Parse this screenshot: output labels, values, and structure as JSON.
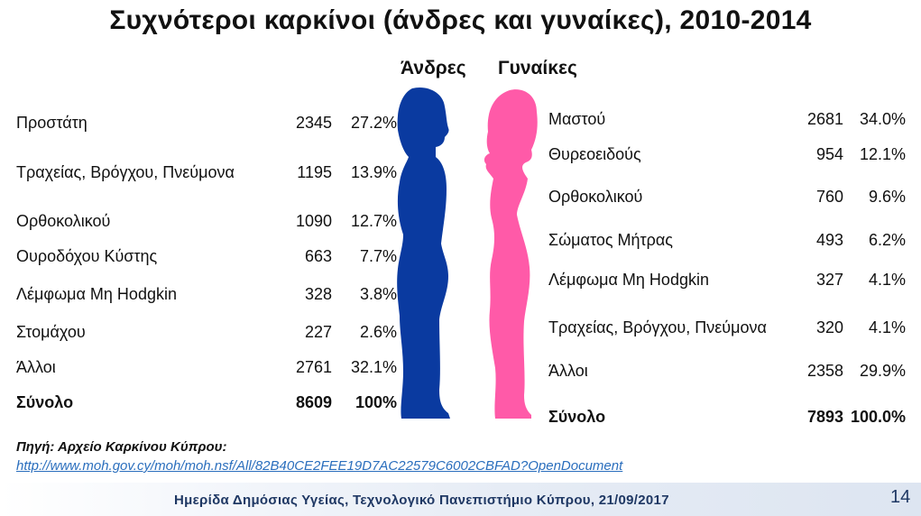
{
  "title": "Συχνότεροι καρκίνοι (άνδρες και γυναίκες), 2010-2014",
  "headers": {
    "men": "Άνδρες",
    "women": "Γυναίκες"
  },
  "colors": {
    "men": "#0a3aa0",
    "women": "#ff5aa8"
  },
  "men": [
    {
      "label": "Προστάτη",
      "count": "2345",
      "percent": "27.2%"
    },
    {
      "label": "Τραχείας, Βρόγχου, Πνεύμονα",
      "count": "1195",
      "percent": "13.9%"
    },
    {
      "label": "Ορθοκολικού",
      "count": "1090",
      "percent": "12.7%"
    },
    {
      "label": "Ουροδόχου Κύστης",
      "count": "663",
      "percent": "7.7%"
    },
    {
      "label": "Λέμφωμα Μη  Hodgkin",
      "count": "328",
      "percent": "3.8%"
    },
    {
      "label": "Στομάχου",
      "count": "227",
      "percent": "2.6%"
    },
    {
      "label": "Άλλοι",
      "count": "2761",
      "percent": "32.1%"
    },
    {
      "label": "Σύνολο",
      "count": "8609",
      "percent": "100%"
    }
  ],
  "women": [
    {
      "label": "Μαστού",
      "count": "2681",
      "percent": "34.0%"
    },
    {
      "label": "Θυρεοειδούς",
      "count": "954",
      "percent": "12.1%"
    },
    {
      "label": "Ορθοκολικού",
      "count": "760",
      "percent": "9.6%"
    },
    {
      "label": "Σώματος Μήτρας",
      "count": "493",
      "percent": "6.2%"
    },
    {
      "label": "Λέμφωμα Μη Hodgkin",
      "count": "327",
      "percent": "4.1%"
    },
    {
      "label": "Τραχείας, Βρόγχου, Πνεύμονα",
      "count": "320",
      "percent": "4.1%"
    },
    {
      "label": "Άλλοι",
      "count": "2358",
      "percent": "29.9%"
    },
    {
      "label": "Σύνολο",
      "count": "7893",
      "percent": "100.0%"
    }
  ],
  "source": {
    "title": "Πηγή: Αρχείο Καρκίνου Κύπρου:",
    "link": "http://www.moh.gov.cy/moh/moh.nsf/All/82B40CE2FEE19D7AC22579C6002CBFAD?OpenDocument"
  },
  "footer": {
    "text": "Ημερίδα Δημόσιας Υγείας, Τεχνολογικό Πανεπιστήμιο Κύπρου, 21/09/2017",
    "page": "14"
  }
}
